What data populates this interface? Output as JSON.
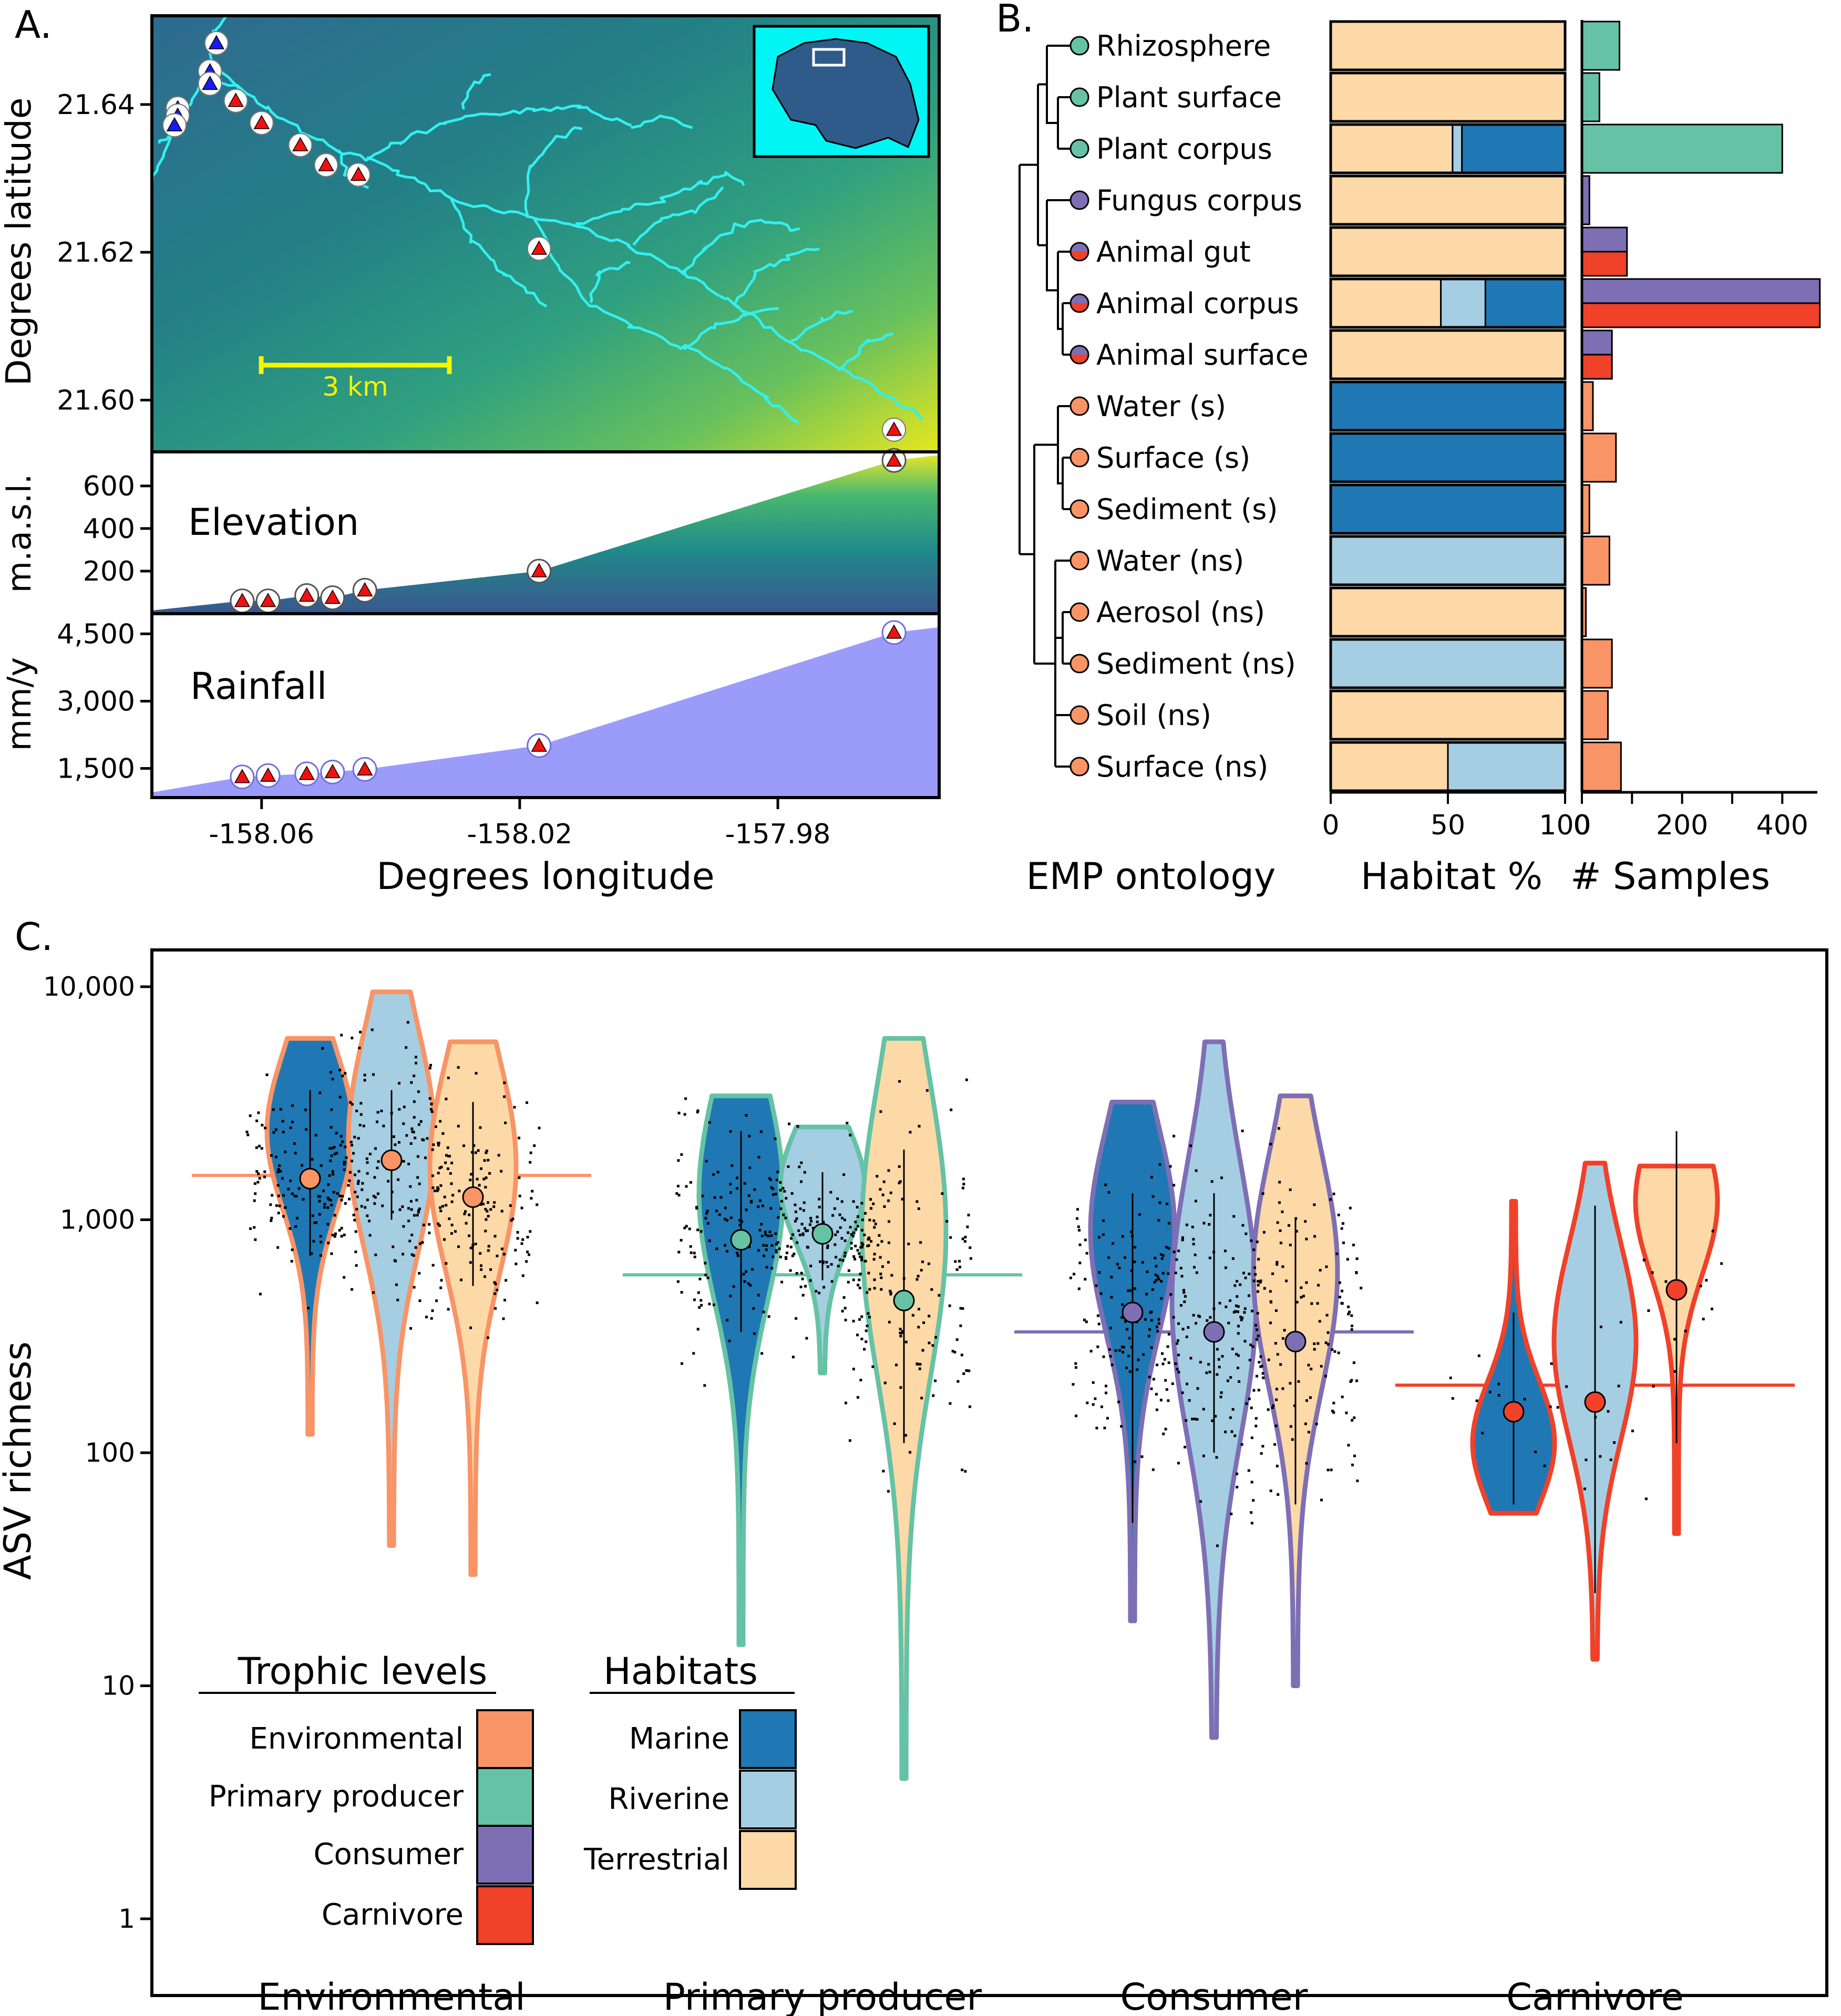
{
  "colors": {
    "environmental": "#F89466",
    "primary_producer": "#66C2A5",
    "consumer": "#7E6FB5",
    "carnivore": "#F04129",
    "marine": "#1F78B4",
    "riverine": "#A6CEE3",
    "terrestrial": "#FDD9A8",
    "stream": "#33F0F0",
    "scalebar": "#F5F500",
    "rainfall": "#9B9CFA",
    "inset_bg": "#00F5F5"
  },
  "panel_a": {
    "label": "A.",
    "y_label": "Degrees latitude",
    "x_label": "Degrees longitude",
    "scale_bar": "3 km",
    "lat_ticks": [
      {
        "v": 21.64,
        "t": "21.64"
      },
      {
        "v": 21.62,
        "t": "21.62"
      },
      {
        "v": 21.6,
        "t": "21.60"
      }
    ],
    "lon_ticks": [
      {
        "v": -158.06,
        "t": "-158.06"
      },
      {
        "v": -158.02,
        "t": "-158.02"
      },
      {
        "v": -157.98,
        "t": "-157.98"
      }
    ],
    "xlim": [
      -158.077,
      -157.955
    ],
    "ylim": [
      21.593,
      21.652
    ],
    "elevation": {
      "title": "Elevation",
      "y_label": "m.a.s.l.",
      "ticks": [
        {
          "v": 200,
          "t": "200"
        },
        {
          "v": 400,
          "t": "400"
        },
        {
          "v": 600,
          "t": "600"
        }
      ],
      "ylim": [
        0,
        760
      ],
      "sites": [
        {
          "lon": -158.063,
          "v": 60
        },
        {
          "lon": -158.059,
          "v": 60
        },
        {
          "lon": -158.053,
          "v": 85
        },
        {
          "lon": -158.049,
          "v": 75
        },
        {
          "lon": -158.044,
          "v": 110
        },
        {
          "lon": -158.017,
          "v": 200
        },
        {
          "lon": -157.962,
          "v": 720
        }
      ]
    },
    "rainfall": {
      "title": "Rainfall",
      "y_label": "mm/y",
      "ticks": [
        {
          "v": 1500,
          "t": "1,500"
        },
        {
          "v": 3000,
          "t": "3,000"
        },
        {
          "v": 4500,
          "t": "4,500"
        }
      ],
      "ylim": [
        850,
        4950
      ],
      "sites": [
        {
          "lon": -158.063,
          "v": 1310
        },
        {
          "lon": -158.059,
          "v": 1340
        },
        {
          "lon": -158.053,
          "v": 1380
        },
        {
          "lon": -158.049,
          "v": 1420
        },
        {
          "lon": -158.044,
          "v": 1480
        },
        {
          "lon": -158.017,
          "v": 2010
        },
        {
          "lon": -157.962,
          "v": 4530
        }
      ]
    }
  },
  "chart_data": [
    {
      "type": "scatter",
      "panel": "A",
      "description_series": "sampling sites",
      "x_axis": "Degrees longitude",
      "y_axis": "Degrees latitude",
      "marine_sites": [
        {
          "lon": -158.067,
          "lat": 21.6483
        },
        {
          "lon": -158.068,
          "lat": 21.6445
        },
        {
          "lon": -158.068,
          "lat": 21.6428
        },
        {
          "lon": -158.073,
          "lat": 21.6395
        },
        {
          "lon": -158.073,
          "lat": 21.6385
        },
        {
          "lon": -158.0735,
          "lat": 21.6372
        }
      ],
      "stream_sites": [
        {
          "lon": -158.064,
          "lat": 21.6405
        },
        {
          "lon": -158.06,
          "lat": 21.6375
        },
        {
          "lon": -158.054,
          "lat": 21.6345
        },
        {
          "lon": -158.05,
          "lat": 21.6318
        },
        {
          "lon": -158.045,
          "lat": 21.6305
        },
        {
          "lon": -158.017,
          "lat": 21.6205
        },
        {
          "lon": -157.962,
          "lat": 21.596
        }
      ]
    },
    {
      "type": "bar",
      "panel": "B",
      "x_label_habitat": "Habitat %",
      "x_label_samples": "# Samples",
      "tree_label": "EMP ontology",
      "habitat_ticks": [
        0,
        50,
        100
      ],
      "sample_ticks": [
        0,
        200,
        400
      ],
      "samples_xlim": [
        0,
        470
      ],
      "categories": [
        {
          "name": "Rhizosphere",
          "tl": [
            "primary_producer"
          ],
          "marine": 0,
          "riverine": 0,
          "terrestrial": 100,
          "samples": [
            {
              "c": "primary_producer",
              "n": 75
            }
          ]
        },
        {
          "name": "Plant surface",
          "tl": [
            "primary_producer"
          ],
          "marine": 0,
          "riverine": 0,
          "terrestrial": 100,
          "samples": [
            {
              "c": "primary_producer",
              "n": 35
            }
          ]
        },
        {
          "name": "Plant corpus",
          "tl": [
            "primary_producer"
          ],
          "marine": 44,
          "riverine": 4,
          "terrestrial": 52,
          "samples": [
            {
              "c": "primary_producer",
              "n": 400
            }
          ]
        },
        {
          "name": "Fungus corpus",
          "tl": [
            "consumer"
          ],
          "marine": 0,
          "riverine": 0,
          "terrestrial": 100,
          "samples": [
            {
              "c": "consumer",
              "n": 15
            }
          ]
        },
        {
          "name": "Animal gut",
          "tl": [
            "consumer",
            "carnivore"
          ],
          "marine": 0,
          "riverine": 0,
          "terrestrial": 100,
          "samples": [
            {
              "c": "consumer",
              "n": 90
            },
            {
              "c": "carnivore",
              "n": 90
            }
          ]
        },
        {
          "name": "Animal corpus",
          "tl": [
            "consumer",
            "carnivore"
          ],
          "marine": 34,
          "riverine": 19,
          "terrestrial": 47,
          "samples": [
            {
              "c": "consumer",
              "n": 475
            },
            {
              "c": "carnivore",
              "n": 475
            }
          ]
        },
        {
          "name": "Animal surface",
          "tl": [
            "consumer",
            "carnivore"
          ],
          "marine": 0,
          "riverine": 0,
          "terrestrial": 100,
          "samples": [
            {
              "c": "consumer",
              "n": 60
            },
            {
              "c": "carnivore",
              "n": 60
            }
          ]
        },
        {
          "name": "Water (s)",
          "tl": [
            "environmental"
          ],
          "marine": 100,
          "riverine": 0,
          "terrestrial": 0,
          "samples": [
            {
              "c": "environmental",
              "n": 22
            }
          ]
        },
        {
          "name": "Surface (s)",
          "tl": [
            "environmental"
          ],
          "marine": 100,
          "riverine": 0,
          "terrestrial": 0,
          "samples": [
            {
              "c": "environmental",
              "n": 68
            }
          ]
        },
        {
          "name": "Sediment (s)",
          "tl": [
            "environmental"
          ],
          "marine": 100,
          "riverine": 0,
          "terrestrial": 0,
          "samples": [
            {
              "c": "environmental",
              "n": 15
            }
          ]
        },
        {
          "name": "Water (ns)",
          "tl": [
            "environmental"
          ],
          "marine": 0,
          "riverine": 100,
          "terrestrial": 0,
          "samples": [
            {
              "c": "environmental",
              "n": 55
            }
          ]
        },
        {
          "name": "Aerosol (ns)",
          "tl": [
            "environmental"
          ],
          "marine": 0,
          "riverine": 0,
          "terrestrial": 100,
          "samples": [
            {
              "c": "environmental",
              "n": 8
            }
          ]
        },
        {
          "name": "Sediment (ns)",
          "tl": [
            "environmental"
          ],
          "marine": 0,
          "riverine": 100,
          "terrestrial": 0,
          "samples": [
            {
              "c": "environmental",
              "n": 60
            }
          ]
        },
        {
          "name": "Soil (ns)",
          "tl": [
            "environmental"
          ],
          "marine": 0,
          "riverine": 0,
          "terrestrial": 100,
          "samples": [
            {
              "c": "environmental",
              "n": 52
            }
          ]
        },
        {
          "name": "Surface (ns)",
          "tl": [
            "environmental"
          ],
          "marine": 0,
          "riverine": 50,
          "terrestrial": 50,
          "samples": [
            {
              "c": "environmental",
              "n": 78
            }
          ]
        }
      ]
    },
    {
      "type": "violin",
      "panel": "C",
      "ylabel": "ASV richness",
      "y_scale": "log",
      "ylim": [
        1,
        10000
      ],
      "y_ticks": [
        {
          "v": 1,
          "t": "1"
        },
        {
          "v": 10,
          "t": "10"
        },
        {
          "v": 100,
          "t": "100"
        },
        {
          "v": 1000,
          "t": "1,000"
        },
        {
          "v": 10000,
          "t": "10,000"
        }
      ],
      "groups": [
        {
          "name": "Environmental",
          "key": "environmental",
          "mean": 1550,
          "violins": [
            {
              "habitat": "marine",
              "min": 120,
              "max": 6000,
              "mode": 2400,
              "median": 1500,
              "q_low": 700,
              "q_high": 3600
            },
            {
              "habitat": "riverine",
              "min": 40,
              "max": 9500,
              "mode": 2200,
              "median": 1800,
              "q_low": 1000,
              "q_high": 3600
            },
            {
              "habitat": "terrestrial",
              "min": 30,
              "max": 5800,
              "mode": 1700,
              "median": 1250,
              "q_low": 520,
              "q_high": 3200
            }
          ]
        },
        {
          "name": "Primary producer",
          "key": "primary_producer",
          "mean": 580,
          "violins": [
            {
              "habitat": "marine",
              "min": 15,
              "max": 3400,
              "mode": 1300,
              "median": 820,
              "q_low": 330,
              "q_high": 2400
            },
            {
              "habitat": "riverine",
              "min": 220,
              "max": 2500,
              "mode": 1400,
              "median": 870,
              "q_low": 550,
              "q_high": 1600
            },
            {
              "habitat": "terrestrial",
              "min": 4,
              "max": 6000,
              "mode": 900,
              "median": 450,
              "q_low": 110,
              "q_high": 2000
            }
          ]
        },
        {
          "name": "Consumer",
          "key": "consumer",
          "mean": 330,
          "violins": [
            {
              "habitat": "marine",
              "min": 19,
              "max": 3200,
              "mode": 900,
              "median": 400,
              "q_low": 50,
              "q_high": 1300
            },
            {
              "habitat": "riverine",
              "min": 6,
              "max": 5800,
              "mode": 450,
              "median": 330,
              "q_low": 100,
              "q_high": 1300
            },
            {
              "habitat": "terrestrial",
              "min": 10,
              "max": 3400,
              "mode": 600,
              "median": 300,
              "q_low": 60,
              "q_high": 1000
            }
          ]
        },
        {
          "name": "Carnivore",
          "key": "carnivore",
          "mean": 195,
          "violins": [
            {
              "habitat": "marine",
              "min": 55,
              "max": 1200,
              "mode": 110,
              "median": 150,
              "q_low": 60,
              "q_high": 400
            },
            {
              "habitat": "riverine",
              "min": 13,
              "max": 1750,
              "mode": 300,
              "median": 165,
              "q_low": 25,
              "q_high": 1150
            },
            {
              "habitat": "terrestrial",
              "min": 45,
              "max": 1700,
              "mode": 1200,
              "median": 500,
              "q_low": 110,
              "q_high": 2400
            }
          ]
        }
      ]
    }
  ],
  "panel_b": {
    "label": "B."
  },
  "panel_c": {
    "label": "C."
  },
  "legend": {
    "trophic_title": "Trophic levels",
    "trophic": [
      {
        "label": "Environmental",
        "key": "environmental"
      },
      {
        "label": "Primary producer",
        "key": "primary_producer"
      },
      {
        "label": "Consumer",
        "key": "consumer"
      },
      {
        "label": "Carnivore",
        "key": "carnivore"
      }
    ],
    "habitat_title": "Habitats",
    "habitats": [
      {
        "label": "Marine",
        "key": "marine"
      },
      {
        "label": "Riverine",
        "key": "riverine"
      },
      {
        "label": "Terrestrial",
        "key": "terrestrial"
      }
    ]
  }
}
